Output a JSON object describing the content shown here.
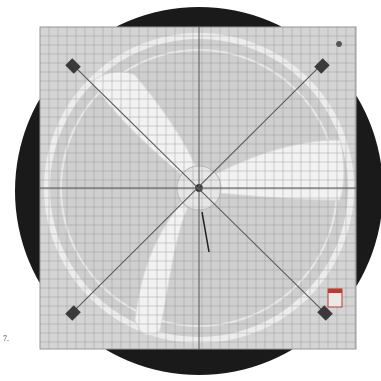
{
  "figure": {
    "label": "7.",
    "subject": "fan-photo",
    "colors": {
      "background": "#ffffff",
      "housing": "#1a1a1a",
      "grille_panel": "#d4d4d4",
      "grid_line": "#8a8a8a",
      "guide_line": "#555555",
      "blade": "#f2f2f2",
      "hub": "#e6e6e6",
      "sticker": "#c0392b"
    }
  }
}
